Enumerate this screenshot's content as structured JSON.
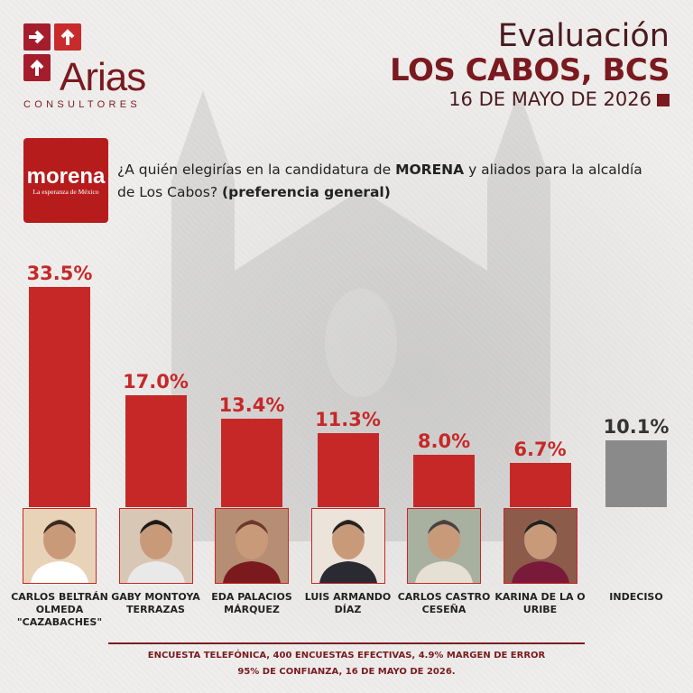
{
  "logo": {
    "name": "Arias",
    "sub": "CONSULTORES"
  },
  "header": {
    "title": "Evaluación",
    "location": "LOS CABOS, BCS",
    "date": "16 DE MAYO DE 2026"
  },
  "party": {
    "name": "morena",
    "tagline": "La esperanza de México"
  },
  "question": {
    "part1": "¿A quién elegirías en la candidatura de ",
    "bold1": "MORENA",
    "part2": " y aliados para la alcaldía de Los Cabos? ",
    "bold2": "(preferencia general)"
  },
  "colors": {
    "bar": "#c62828",
    "undecided": "#8a8a8a",
    "accent": "#7a1a1f"
  },
  "chart_data": {
    "type": "bar",
    "categories": [
      "CARLOS BELTRÁN OLMEDA \"CAZABACHES\"",
      "GABY MONTOYA TERRAZAS",
      "EDA PALACIOS MÁRQUEZ",
      "LUIS ARMANDO DÍAZ",
      "CARLOS CASTRO CESEÑA",
      "KARINA DE LA O URIBE",
      "INDECISO"
    ],
    "category_lines": [
      [
        "CARLOS BELTRÁN",
        "OLMEDA",
        "\"CAZABACHES\""
      ],
      [
        "GABY MONTOYA",
        "TERRAZAS"
      ],
      [
        "EDA PALACIOS",
        "MÁRQUEZ"
      ],
      [
        "LUIS ARMANDO",
        "DÍAZ"
      ],
      [
        "CARLOS CASTRO",
        "CESEÑA"
      ],
      [
        "KARINA DE LA O",
        "URIBE"
      ],
      [
        "INDECISO"
      ]
    ],
    "values": [
      33.5,
      17.0,
      13.4,
      11.3,
      8.0,
      6.7,
      10.1
    ],
    "labels": [
      "33.5%",
      "17.0%",
      "13.4%",
      "11.3%",
      "8.0%",
      "6.7%",
      "10.1%"
    ],
    "has_photo": [
      true,
      true,
      true,
      true,
      true,
      true,
      false
    ],
    "ylim": [
      0,
      33.5
    ],
    "grid": false,
    "legend": "none"
  },
  "footer": {
    "line1": "ENCUESTA TELEFÓNICA, 400 ENCUESTAS EFECTIVAS, 4.9% MARGEN DE ERROR",
    "line2": "95% DE CONFIANZA, 16 DE MAYO DE 2026."
  }
}
